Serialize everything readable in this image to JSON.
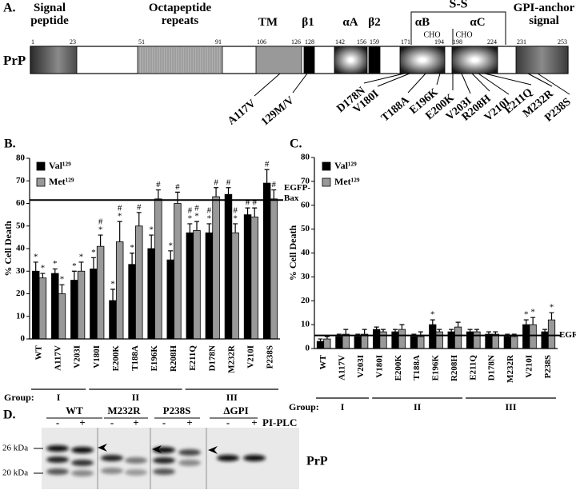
{
  "panel_a": {
    "letter": "A.",
    "protein": "PrP",
    "domains": [
      "Signal peptide",
      "Octapeptide repeats",
      "TM",
      "β1",
      "αA",
      "β2",
      "αB",
      "αC",
      "GPI-anchor signal"
    ],
    "residues": [
      1,
      23,
      51,
      91,
      106,
      126,
      128,
      142,
      156,
      159,
      171,
      194,
      198,
      224,
      231,
      253
    ],
    "disulfide": "S-S",
    "glycosylation": [
      "CHO",
      "CHO"
    ],
    "mutations": [
      "A117V",
      "129M/V",
      "D178N",
      "V180I",
      "T188A",
      "E196K",
      "E200K",
      "V203I",
      "R208H",
      "V210I",
      "E211Q",
      "M232R",
      "P238S"
    ]
  },
  "chart_data": [
    {
      "type": "bar",
      "letter": "B.",
      "ylabel": "% Cell Death",
      "categories": [
        "WT",
        "A117V",
        "V203I",
        "V180I",
        "E200K",
        "T188A",
        "E196K",
        "R208H",
        "E211Q",
        "D178N",
        "M232R",
        "V210I",
        "P238S"
      ],
      "series": [
        {
          "name": "Val¹²⁹",
          "color": "#000000",
          "values": [
            30,
            29,
            26,
            31,
            17,
            33,
            40,
            35,
            47,
            47,
            64,
            55,
            69
          ],
          "errors": [
            4,
            2,
            4,
            5,
            5,
            5,
            6,
            4,
            4,
            4,
            3,
            3,
            6
          ],
          "annotations": [
            [
              "*"
            ],
            [
              "*"
            ],
            [
              "*"
            ],
            [
              "*"
            ],
            [
              "*"
            ],
            [
              "*"
            ],
            [
              "*"
            ],
            [
              "*"
            ],
            [
              "#",
              "*"
            ],
            [
              "#",
              "*"
            ],
            [
              "#"
            ],
            [
              "#"
            ],
            [
              "#"
            ]
          ]
        },
        {
          "name": "Met¹²⁹",
          "color": "#999999",
          "values": [
            27,
            20,
            30,
            41,
            43,
            50,
            62,
            60,
            48,
            63,
            47,
            54,
            62
          ],
          "errors": [
            2,
            4,
            4,
            5,
            9,
            6,
            4,
            5,
            4,
            4,
            4,
            4,
            4
          ],
          "annotations": [
            [
              "*"
            ],
            [
              "*"
            ],
            [
              "*"
            ],
            [
              "#",
              "*"
            ],
            [
              "#",
              "*"
            ],
            [
              "#"
            ],
            [
              "#"
            ],
            [
              "#"
            ],
            [
              "#",
              "*"
            ],
            [
              "#"
            ],
            [
              "#",
              "*"
            ],
            [
              "#"
            ],
            [
              "#"
            ]
          ]
        }
      ],
      "ylim": [
        0,
        80
      ],
      "yticks": [
        0,
        10,
        20,
        30,
        40,
        50,
        60,
        70,
        80
      ],
      "reference": {
        "value": 61.5,
        "label": [
          "EGFP-",
          "Bax"
        ]
      },
      "group_label": "Group:",
      "groups": [
        "I",
        "II",
        "III"
      ]
    },
    {
      "type": "bar",
      "letter": "C.",
      "ylabel": "% Cell Death",
      "categories": [
        "WT",
        "A117V",
        "V203I",
        "V180I",
        "E200K",
        "T188A",
        "E196K",
        "R208H",
        "E211Q",
        "D178N",
        "M232R",
        "V210I",
        "P238S"
      ],
      "series": [
        {
          "name": "Val¹²⁹",
          "color": "#000000",
          "values": [
            3,
            5,
            5,
            8,
            7,
            5,
            10,
            7,
            7,
            6,
            5,
            10,
            7
          ],
          "errors": [
            1,
            1,
            1,
            1,
            1,
            1,
            2,
            1,
            1,
            1,
            1,
            2,
            1
          ],
          "annotations": [
            [],
            [],
            [],
            [],
            [],
            [],
            [
              "*"
            ],
            [],
            [],
            [],
            [],
            [
              "*"
            ],
            []
          ]
        },
        {
          "name": "Met¹²⁹",
          "color": "#999999",
          "values": [
            4,
            6,
            6,
            7,
            8,
            5,
            7,
            9,
            7,
            6,
            5,
            10,
            12
          ],
          "errors": [
            1,
            2,
            2,
            1,
            2,
            2,
            1,
            2,
            1,
            1,
            1,
            3,
            3
          ],
          "annotations": [
            [],
            [],
            [],
            [],
            [],
            [],
            [],
            [],
            [],
            [],
            [],
            [
              "*"
            ],
            [
              "*"
            ]
          ]
        }
      ],
      "ylim": [
        0,
        80
      ],
      "yticks": [
        0,
        10,
        20,
        30,
        40,
        50,
        60,
        70,
        80
      ],
      "reference": {
        "value": 5.5,
        "label": [
          "EGFP"
        ]
      },
      "group_label": "Group:",
      "groups": [
        "I",
        "II",
        "III"
      ]
    }
  ],
  "panel_d": {
    "letter": "D.",
    "lanes": [
      "WT",
      "M232R",
      "P238S",
      "ΔGPI"
    ],
    "treatment_marks": [
      "-",
      "+"
    ],
    "treatment": "PI-PLC",
    "markers": [
      "26 kDa",
      "20 kDa"
    ],
    "label": "PrP"
  }
}
